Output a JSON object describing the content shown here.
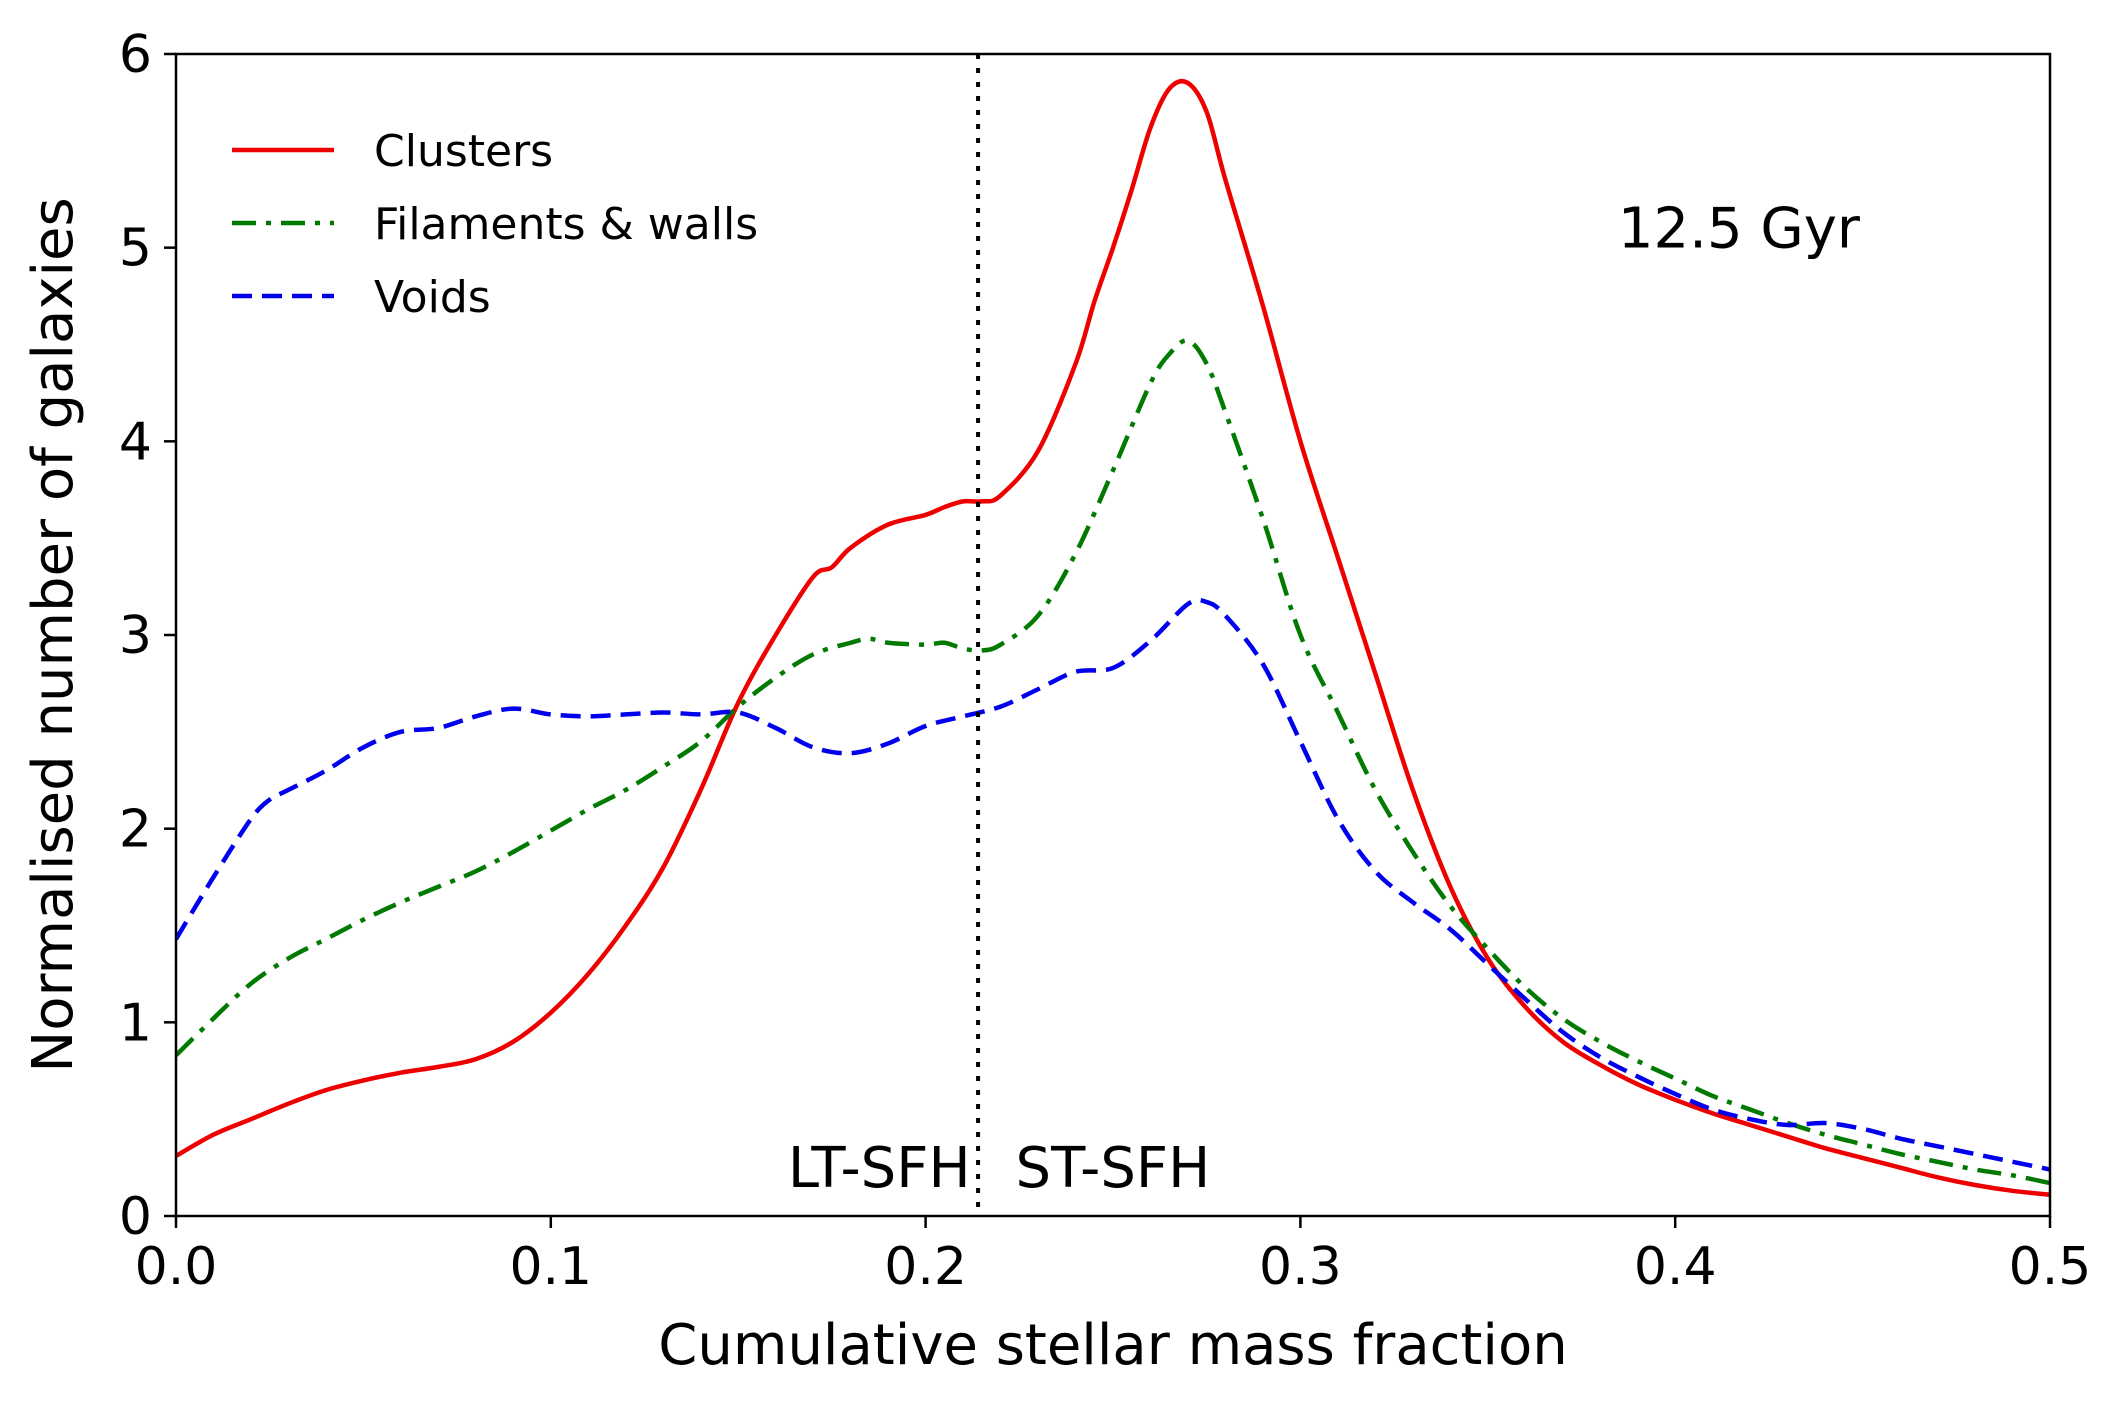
{
  "chart_data": {
    "type": "line",
    "title": "",
    "xlabel": "Cumulative stellar mass fraction",
    "ylabel": "Normalised number of galaxies",
    "xlim": [
      0.0,
      0.5
    ],
    "ylim": [
      0,
      6
    ],
    "xticks": [
      0.0,
      0.1,
      0.2,
      0.3,
      0.4,
      0.5
    ],
    "xtick_labels": [
      "0.0",
      "0.1",
      "0.2",
      "0.3",
      "0.4",
      "0.5"
    ],
    "yticks": [
      0,
      1,
      2,
      3,
      4,
      5,
      6
    ],
    "ytick_labels": [
      "0",
      "1",
      "2",
      "3",
      "4",
      "5",
      "6"
    ],
    "grid": false,
    "legend_position": "top-left",
    "annotation_text": "12.5 Gyr",
    "divider": {
      "x": 0.214,
      "style": "dotted",
      "color": "#000000"
    },
    "region_labels": [
      {
        "text": "LT-SFH",
        "x": 0.212,
        "y": 0.15,
        "anchor": "end"
      },
      {
        "text": "ST-SFH",
        "x": 0.224,
        "y": 0.15,
        "anchor": "start"
      }
    ],
    "series": [
      {
        "name": "Clusters",
        "color": "#ee0000",
        "dash": "solid",
        "x": [
          0.0,
          0.01,
          0.02,
          0.03,
          0.04,
          0.05,
          0.06,
          0.07,
          0.08,
          0.09,
          0.1,
          0.11,
          0.12,
          0.13,
          0.14,
          0.15,
          0.16,
          0.17,
          0.175,
          0.18,
          0.19,
          0.2,
          0.205,
          0.21,
          0.215,
          0.22,
          0.23,
          0.24,
          0.245,
          0.25,
          0.255,
          0.26,
          0.265,
          0.27,
          0.275,
          0.28,
          0.29,
          0.3,
          0.31,
          0.32,
          0.33,
          0.34,
          0.35,
          0.36,
          0.37,
          0.38,
          0.39,
          0.4,
          0.41,
          0.42,
          0.43,
          0.44,
          0.45,
          0.46,
          0.47,
          0.48,
          0.49,
          0.5
        ],
        "y": [
          0.31,
          0.42,
          0.5,
          0.58,
          0.65,
          0.7,
          0.74,
          0.77,
          0.81,
          0.9,
          1.05,
          1.25,
          1.5,
          1.8,
          2.2,
          2.65,
          3.0,
          3.3,
          3.35,
          3.45,
          3.57,
          3.62,
          3.66,
          3.69,
          3.69,
          3.72,
          3.95,
          4.4,
          4.72,
          5.0,
          5.3,
          5.62,
          5.82,
          5.85,
          5.7,
          5.35,
          4.7,
          4.0,
          3.4,
          2.8,
          2.2,
          1.7,
          1.33,
          1.08,
          0.9,
          0.78,
          0.68,
          0.6,
          0.53,
          0.47,
          0.41,
          0.35,
          0.3,
          0.25,
          0.2,
          0.16,
          0.13,
          0.11
        ]
      },
      {
        "name": "Filaments & walls",
        "color": "#007a00",
        "dash": "dashdot",
        "x": [
          0.0,
          0.01,
          0.02,
          0.03,
          0.04,
          0.05,
          0.06,
          0.07,
          0.08,
          0.09,
          0.1,
          0.11,
          0.12,
          0.13,
          0.14,
          0.15,
          0.16,
          0.17,
          0.18,
          0.185,
          0.19,
          0.2,
          0.205,
          0.21,
          0.215,
          0.22,
          0.23,
          0.24,
          0.25,
          0.26,
          0.265,
          0.27,
          0.275,
          0.28,
          0.29,
          0.3,
          0.31,
          0.32,
          0.33,
          0.34,
          0.35,
          0.36,
          0.37,
          0.38,
          0.39,
          0.4,
          0.41,
          0.42,
          0.43,
          0.44,
          0.45,
          0.46,
          0.47,
          0.48,
          0.49,
          0.5
        ],
        "y": [
          0.83,
          1.02,
          1.2,
          1.33,
          1.43,
          1.53,
          1.62,
          1.7,
          1.78,
          1.88,
          1.99,
          2.1,
          2.2,
          2.32,
          2.45,
          2.63,
          2.78,
          2.9,
          2.96,
          2.98,
          2.96,
          2.95,
          2.96,
          2.93,
          2.92,
          2.95,
          3.1,
          3.42,
          3.85,
          4.3,
          4.45,
          4.52,
          4.4,
          4.15,
          3.6,
          3.0,
          2.6,
          2.2,
          1.88,
          1.6,
          1.38,
          1.18,
          1.02,
          0.9,
          0.8,
          0.71,
          0.62,
          0.55,
          0.48,
          0.42,
          0.37,
          0.32,
          0.28,
          0.24,
          0.21,
          0.17
        ]
      },
      {
        "name": "Voids",
        "color": "#0000ee",
        "dash": "dashed",
        "x": [
          0.0,
          0.01,
          0.02,
          0.025,
          0.03,
          0.04,
          0.05,
          0.06,
          0.07,
          0.08,
          0.09,
          0.1,
          0.11,
          0.12,
          0.13,
          0.14,
          0.15,
          0.16,
          0.17,
          0.18,
          0.19,
          0.2,
          0.21,
          0.22,
          0.23,
          0.24,
          0.25,
          0.26,
          0.27,
          0.275,
          0.28,
          0.29,
          0.3,
          0.31,
          0.32,
          0.33,
          0.34,
          0.35,
          0.36,
          0.37,
          0.38,
          0.39,
          0.4,
          0.41,
          0.42,
          0.43,
          0.44,
          0.45,
          0.46,
          0.47,
          0.48,
          0.49,
          0.5
        ],
        "y": [
          1.43,
          1.75,
          2.05,
          2.15,
          2.2,
          2.3,
          2.42,
          2.5,
          2.52,
          2.58,
          2.62,
          2.59,
          2.58,
          2.59,
          2.6,
          2.59,
          2.6,
          2.52,
          2.42,
          2.39,
          2.44,
          2.53,
          2.58,
          2.63,
          2.72,
          2.81,
          2.83,
          2.97,
          3.16,
          3.17,
          3.1,
          2.85,
          2.45,
          2.05,
          1.78,
          1.62,
          1.48,
          1.3,
          1.12,
          0.95,
          0.82,
          0.72,
          0.63,
          0.55,
          0.5,
          0.47,
          0.48,
          0.45,
          0.4,
          0.36,
          0.32,
          0.28,
          0.24
        ]
      }
    ]
  }
}
